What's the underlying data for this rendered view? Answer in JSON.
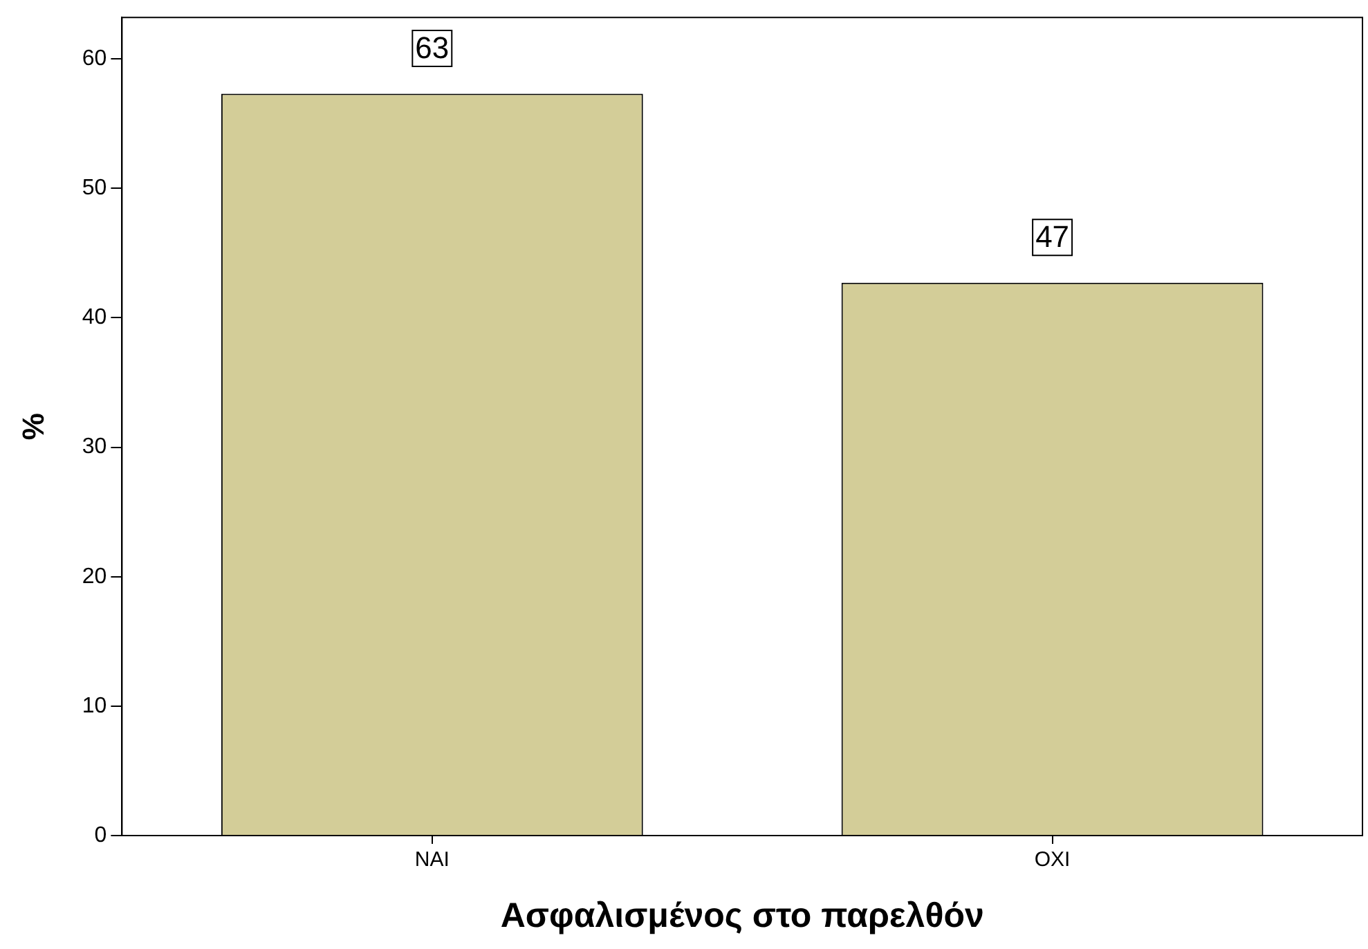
{
  "chart_data": {
    "type": "bar",
    "xlabel": "Ασφαλισμένος στο παρελθόν",
    "ylabel": "%",
    "categories": [
      "NAI",
      "OXI"
    ],
    "values": [
      57.3,
      42.7
    ],
    "color": "#d3cd98",
    "ylim": [
      0,
      63.2
    ],
    "yticks": [
      0,
      10,
      20,
      30,
      40,
      50,
      60
    ],
    "grid": false,
    "legend": false,
    "annotations": [
      {
        "text": "63",
        "x": "NAI",
        "y": 60.8
      },
      {
        "text": "47",
        "x": "OXI",
        "y": 46.2
      }
    ]
  }
}
